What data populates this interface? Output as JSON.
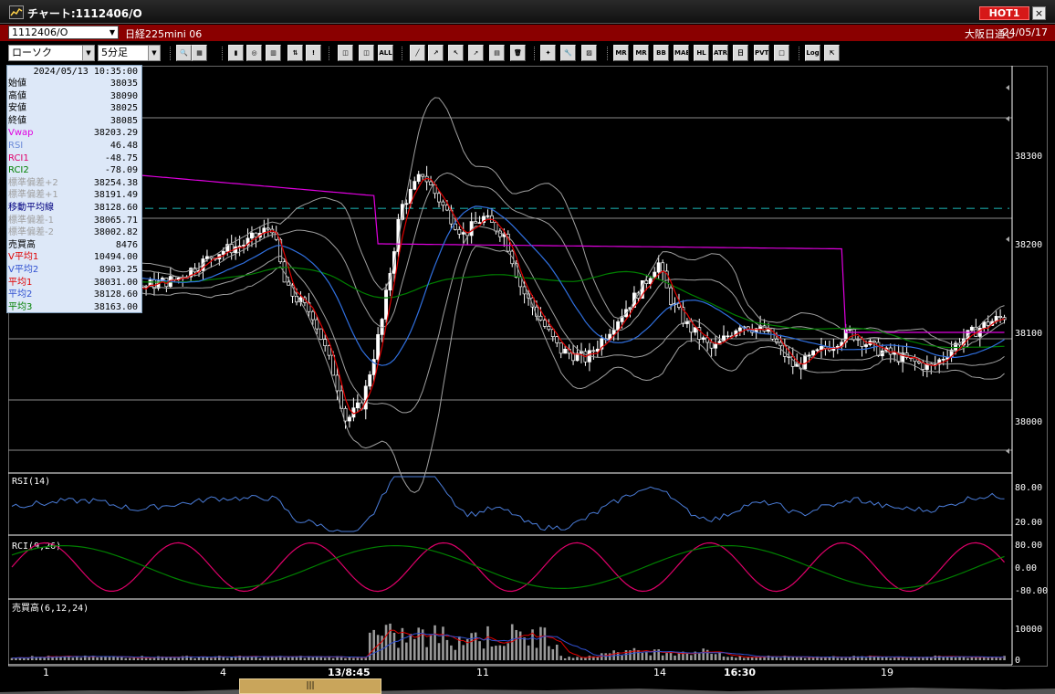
{
  "window": {
    "title": "チャート:1112406/O",
    "hot_badge": "HOT1",
    "close": "×"
  },
  "symbol_bar": {
    "code": "1112406/O",
    "name": "日経225mini 06",
    "exchange": "大阪日通し",
    "date": "24/05/17"
  },
  "toolbar": {
    "chart_type": "ローソク",
    "interval": "5分足",
    "buttons": [
      {
        "icon": "zoom-icon",
        "label": "🔍"
      },
      {
        "icon": "grid-icon",
        "label": "▦"
      },
      {
        "icon": "candle-icon",
        "label": "▮"
      },
      {
        "icon": "search-chart-icon",
        "label": "◎"
      },
      {
        "icon": "volume-icon",
        "label": "▥"
      },
      {
        "icon": "compare-icon",
        "label": "⇅"
      },
      {
        "icon": "disabled-icon",
        "label": "!"
      },
      {
        "icon": "bars-icon",
        "label": "◫"
      },
      {
        "icon": "ohlc-icon",
        "label": "◫"
      },
      {
        "icon": "all-icon",
        "label": "ALL"
      },
      {
        "icon": "trend-line-icon",
        "label": "╱"
      },
      {
        "icon": "line-tool-icon",
        "label": "↗"
      },
      {
        "icon": "cursor-icon",
        "label": "↖"
      },
      {
        "icon": "arrow-icon",
        "label": "➚"
      },
      {
        "icon": "memo-icon",
        "label": "▤"
      },
      {
        "icon": "trash-icon",
        "label": "🗑"
      },
      {
        "icon": "settings-icon",
        "label": "✦"
      },
      {
        "icon": "wrench-icon",
        "label": "🔧"
      },
      {
        "icon": "palette-icon",
        "label": "▨"
      },
      {
        "icon": "mr-icon",
        "label": "MR"
      },
      {
        "icon": "mr2-icon",
        "label": "MR"
      },
      {
        "icon": "bb-icon",
        "label": "BB"
      },
      {
        "icon": "mae-icon",
        "label": "MAE"
      },
      {
        "icon": "hl-icon",
        "label": "HL"
      },
      {
        "icon": "atr-icon",
        "label": "ATR"
      },
      {
        "icon": "ichimoku-icon",
        "label": "日"
      },
      {
        "icon": "pvt-icon",
        "label": "PVT"
      },
      {
        "icon": "frame-icon",
        "label": "□"
      },
      {
        "icon": "log-icon",
        "label": "Log"
      },
      {
        "icon": "export-icon",
        "label": "⇱"
      }
    ]
  },
  "info_panel": {
    "datetime": "2024/05/13  10:35:00",
    "rows": [
      {
        "label": "始値",
        "value": "38035",
        "color": "#000000"
      },
      {
        "label": "高値",
        "value": "38090",
        "color": "#000000"
      },
      {
        "label": "安値",
        "value": "38025",
        "color": "#000000"
      },
      {
        "label": "終値",
        "value": "38085",
        "color": "#000000"
      },
      {
        "label": "Vwap",
        "value": "38203.29",
        "color": "#e000e0"
      },
      {
        "label": "RSI",
        "value": "46.48",
        "color": "#6a8ad8"
      },
      {
        "label": "RCI1",
        "value": "-48.75",
        "color": "#e0006a"
      },
      {
        "label": "RCI2",
        "value": "-78.09",
        "color": "#008000"
      },
      {
        "label": "標準偏差+2",
        "value": "38254.38",
        "color": "#a0a0a0"
      },
      {
        "label": "標準偏差+1",
        "value": "38191.49",
        "color": "#a0a0a0"
      },
      {
        "label": "移動平均線",
        "value": "38128.60",
        "color": "#000080"
      },
      {
        "label": "標準偏差-1",
        "value": "38065.71",
        "color": "#a0a0a0"
      },
      {
        "label": "標準偏差-2",
        "value": "38002.82",
        "color": "#a0a0a0"
      },
      {
        "label": "売買高",
        "value": "8476",
        "color": "#000000"
      },
      {
        "label": "V平均1",
        "value": "10494.00",
        "color": "#e00000"
      },
      {
        "label": "V平均2",
        "value": "8903.25",
        "color": "#3050d0"
      },
      {
        "label": "平均1",
        "value": "38031.00",
        "color": "#e00000"
      },
      {
        "label": "平均2",
        "value": "38128.60",
        "color": "#3050d0"
      },
      {
        "label": "平均3",
        "value": "38163.00",
        "color": "#008000"
      }
    ]
  },
  "price_axis": {
    "labels": [
      "38300",
      "38200",
      "38100",
      "38000"
    ],
    "dashed_level": 38240
  },
  "panels": {
    "rsi": {
      "title": "RSI(14)",
      "labels": [
        "80.00",
        "20.00"
      ]
    },
    "rci": {
      "title": "RCI(9,26)",
      "labels": [
        "80.00",
        "0.00",
        "-80.00"
      ]
    },
    "volume": {
      "title": "売買高(6,12,24)",
      "labels": [
        "10000",
        "0"
      ]
    }
  },
  "x_axis": {
    "labels": [
      "1",
      "4",
      "13/8:45",
      "11",
      "14",
      "16:30",
      "19"
    ]
  },
  "colors": {
    "up": "#ffffff",
    "down": "#000000",
    "ma_fast": "#e00000",
    "ma_mid": "#3070e0",
    "ma_slow": "#008000",
    "vwap": "#e000e0",
    "bands": "#a0a0a0",
    "rsi": "#4a7cd8",
    "rci1": "#e0006a",
    "rci2": "#008000",
    "level_line": "#18a0a0"
  },
  "scroll": {
    "thumb_label": "|||"
  }
}
